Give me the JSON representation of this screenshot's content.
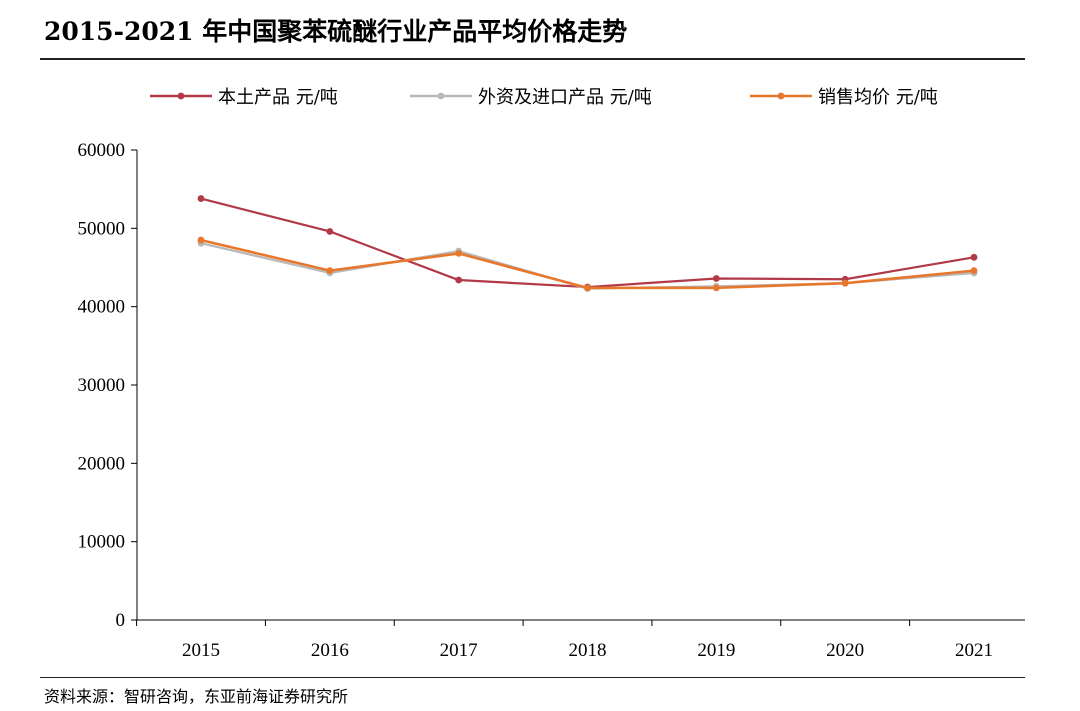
{
  "title": "2015-2021 年中国聚苯硫醚行业产品平均价格走势",
  "source": "资料来源：智研咨询，东亚前海证券研究所",
  "colors": {
    "domestic": "#b23a48",
    "foreign": "#b8b8b8",
    "average": "#e8772e",
    "axis": "#000000"
  },
  "chart_data": {
    "type": "line",
    "title": "2015-2021 年中国聚苯硫醚行业产品平均价格走势",
    "categories": [
      "2015",
      "2016",
      "2017",
      "2018",
      "2019",
      "2020",
      "2021"
    ],
    "ylim": [
      0,
      60000
    ],
    "yticks": [
      "0",
      "10000",
      "20000",
      "30000",
      "40000",
      "50000",
      "60000"
    ],
    "legend_position": "top",
    "grid": false,
    "series": [
      {
        "name": "本土产品 元/吨",
        "color": "#b23a48",
        "values": [
          53800,
          49600,
          43400,
          42500,
          43600,
          43500,
          46300
        ]
      },
      {
        "name": "外资及进口产品 元/吨",
        "color": "#b8b8b8",
        "values": [
          48100,
          44300,
          47100,
          42300,
          42600,
          43000,
          44300
        ]
      },
      {
        "name": "销售均价 元/吨",
        "color": "#e8772e",
        "values": [
          48500,
          44600,
          46800,
          42400,
          42400,
          43000,
          44600
        ]
      }
    ]
  }
}
